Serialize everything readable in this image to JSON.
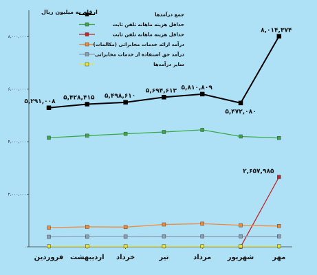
{
  "chart_data": {
    "type": "line",
    "unit_label": "ارقام به میلیون ریال",
    "categories": [
      "فروردین",
      "اردیبهشت",
      "خرداد",
      "تیر",
      "مرداد",
      "شهریور",
      "مهر"
    ],
    "ylim": [
      0,
      9000000
    ],
    "yticks": [
      0,
      2000000,
      4000000,
      6000000,
      8000000
    ],
    "ytick_labels": [
      "۰",
      "۲,۰۰۰,۰۰۰",
      "۴,۰۰۰,۰۰۰",
      "۶,۰۰۰,۰۰۰",
      "۸,۰۰۰,۰۰۰"
    ],
    "legend_position": "top-right",
    "grid": false,
    "series": [
      {
        "name": "جمع درآمدها",
        "color": "#000000",
        "values": [
          5291008,
          5428415,
          5498610,
          5694613,
          5810809,
          5472080,
          8014374
        ],
        "labels": [
          "۵,۲۹۱,۰۰۸",
          "۵,۴۲۸,۴۱۵",
          "۵,۴۹۸,۶۱۰",
          "۵,۶۹۴,۶۱۳",
          "۵,۸۱۰,۸۰۹",
          "۵,۴۷۲,۰۸۰",
          "۸,۰۱۴,۳۷۴"
        ]
      },
      {
        "name": "حداقل هزینه ماهانه تلفن ثابت",
        "color": "#3aa84a",
        "values": [
          4150000,
          4230000,
          4300000,
          4370000,
          4450000,
          4200000,
          4140000
        ]
      },
      {
        "name": "حداقل هزینه ماهانه تلفن ثابت",
        "color": "#c0262a",
        "values": [
          null,
          null,
          null,
          null,
          null,
          0,
          2657985
        ],
        "labels": [
          null,
          null,
          null,
          null,
          null,
          null,
          "۲,۶۵۷,۹۸۵"
        ]
      },
      {
        "name": "درآمد ارائه خدمات مخابراتی (مکالمات)",
        "color": "#ef8a3a",
        "values": [
          730000,
          760000,
          750000,
          850000,
          880000,
          820000,
          790000
        ]
      },
      {
        "name": "درآمد حق استفاده از خدمات مخابراتی",
        "color": "#8a9db3",
        "values": [
          380000,
          390000,
          390000,
          400000,
          400000,
          400000,
          400000
        ]
      },
      {
        "name": "سایر درآمدها",
        "color": "#e8e23a",
        "values": [
          20000,
          20000,
          20000,
          20000,
          20000,
          20000,
          20000
        ]
      }
    ]
  }
}
